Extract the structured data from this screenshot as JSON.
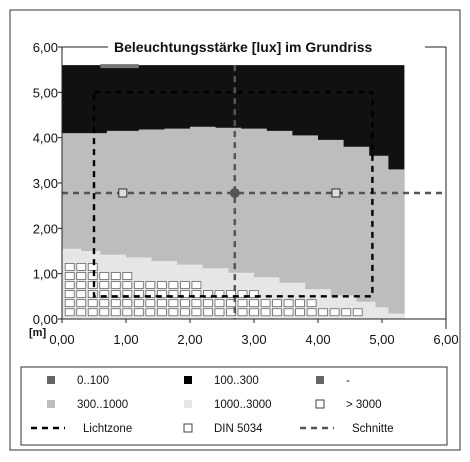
{
  "chart_data": {
    "type": "heatmap",
    "title": "Beleuchtungsstärke [lux] im Grundriss",
    "unit_label": "[m]",
    "xlim": [
      0,
      6
    ],
    "ylim": [
      0,
      6
    ],
    "x_ticks": [
      "0,00",
      "1,00",
      "2,00",
      "3,00",
      "4,00",
      "5,00",
      "6,00"
    ],
    "y_ticks": [
      "0,00",
      "1,00",
      "2,00",
      "3,00",
      "4,00",
      "5,00",
      "6,00"
    ],
    "room": {
      "x": [
        0,
        5.35
      ],
      "y": [
        0,
        5.6
      ]
    },
    "zones": [
      {
        "name": "300..1000",
        "boundary": [
          [
            0.0,
            4.1
          ],
          [
            0.6,
            4.1
          ],
          [
            0.7,
            4.15
          ],
          [
            1.0,
            4.15
          ],
          [
            1.2,
            4.18
          ],
          [
            1.6,
            4.2
          ],
          [
            2.0,
            4.24
          ],
          [
            2.4,
            4.22
          ],
          [
            2.8,
            4.2
          ],
          [
            3.2,
            4.15
          ],
          [
            3.6,
            4.05
          ],
          [
            4.0,
            3.95
          ],
          [
            4.4,
            3.8
          ],
          [
            4.8,
            3.6
          ],
          [
            5.1,
            3.3
          ],
          [
            5.35,
            3.0
          ]
        ]
      },
      {
        "name": "1000..3000",
        "boundary": [
          [
            0.0,
            1.55
          ],
          [
            0.3,
            1.5
          ],
          [
            0.6,
            1.42
          ],
          [
            1.0,
            1.36
          ],
          [
            1.4,
            1.28
          ],
          [
            1.8,
            1.2
          ],
          [
            2.2,
            1.12
          ],
          [
            2.6,
            1.02
          ],
          [
            3.0,
            0.92
          ],
          [
            3.4,
            0.8
          ],
          [
            3.8,
            0.66
          ],
          [
            4.2,
            0.52
          ],
          [
            4.6,
            0.38
          ],
          [
            4.9,
            0.26
          ],
          [
            5.1,
            0.12
          ],
          [
            5.35,
            0.0
          ]
        ]
      }
    ],
    "din5034_points": [
      [
        0.95,
        2.78
      ],
      [
        2.7,
        2.78
      ],
      [
        4.28,
        2.78
      ]
    ],
    "lichtzone": {
      "x": [
        0.5,
        4.85
      ],
      "y": [
        0.5,
        5.0
      ]
    },
    "schnitte": {
      "x": 2.7,
      "y": 2.78
    },
    "legend": [
      {
        "label": "0..100",
        "color": "#666666",
        "type": "square"
      },
      {
        "label": "100..300",
        "color": "#000000",
        "type": "square"
      },
      {
        "label": "-",
        "color": "#666666",
        "type": "square"
      },
      {
        "label": "300..1000",
        "color": "#bdbdbd",
        "type": "square"
      },
      {
        "label": "1000..3000",
        "color": "#e6e6e6",
        "type": "square"
      },
      {
        "label": "> 3000",
        "color": "#ffffff",
        "type": "outline-square"
      },
      {
        "label": "Lichtzone",
        "color": "#000000",
        "type": "dash"
      },
      {
        "label": "DIN 5034",
        "color": "#ffffff",
        "type": "outline-square"
      },
      {
        "label": "Schnitte",
        "color": "#555555",
        "type": "dash"
      }
    ],
    "colors": {
      "z100_300": "#111111",
      "z300_1000": "#bdbdbd",
      "z1000_3000": "#e6e6e6",
      "lichtzone": "#000000",
      "schnitte": "#555555"
    }
  }
}
